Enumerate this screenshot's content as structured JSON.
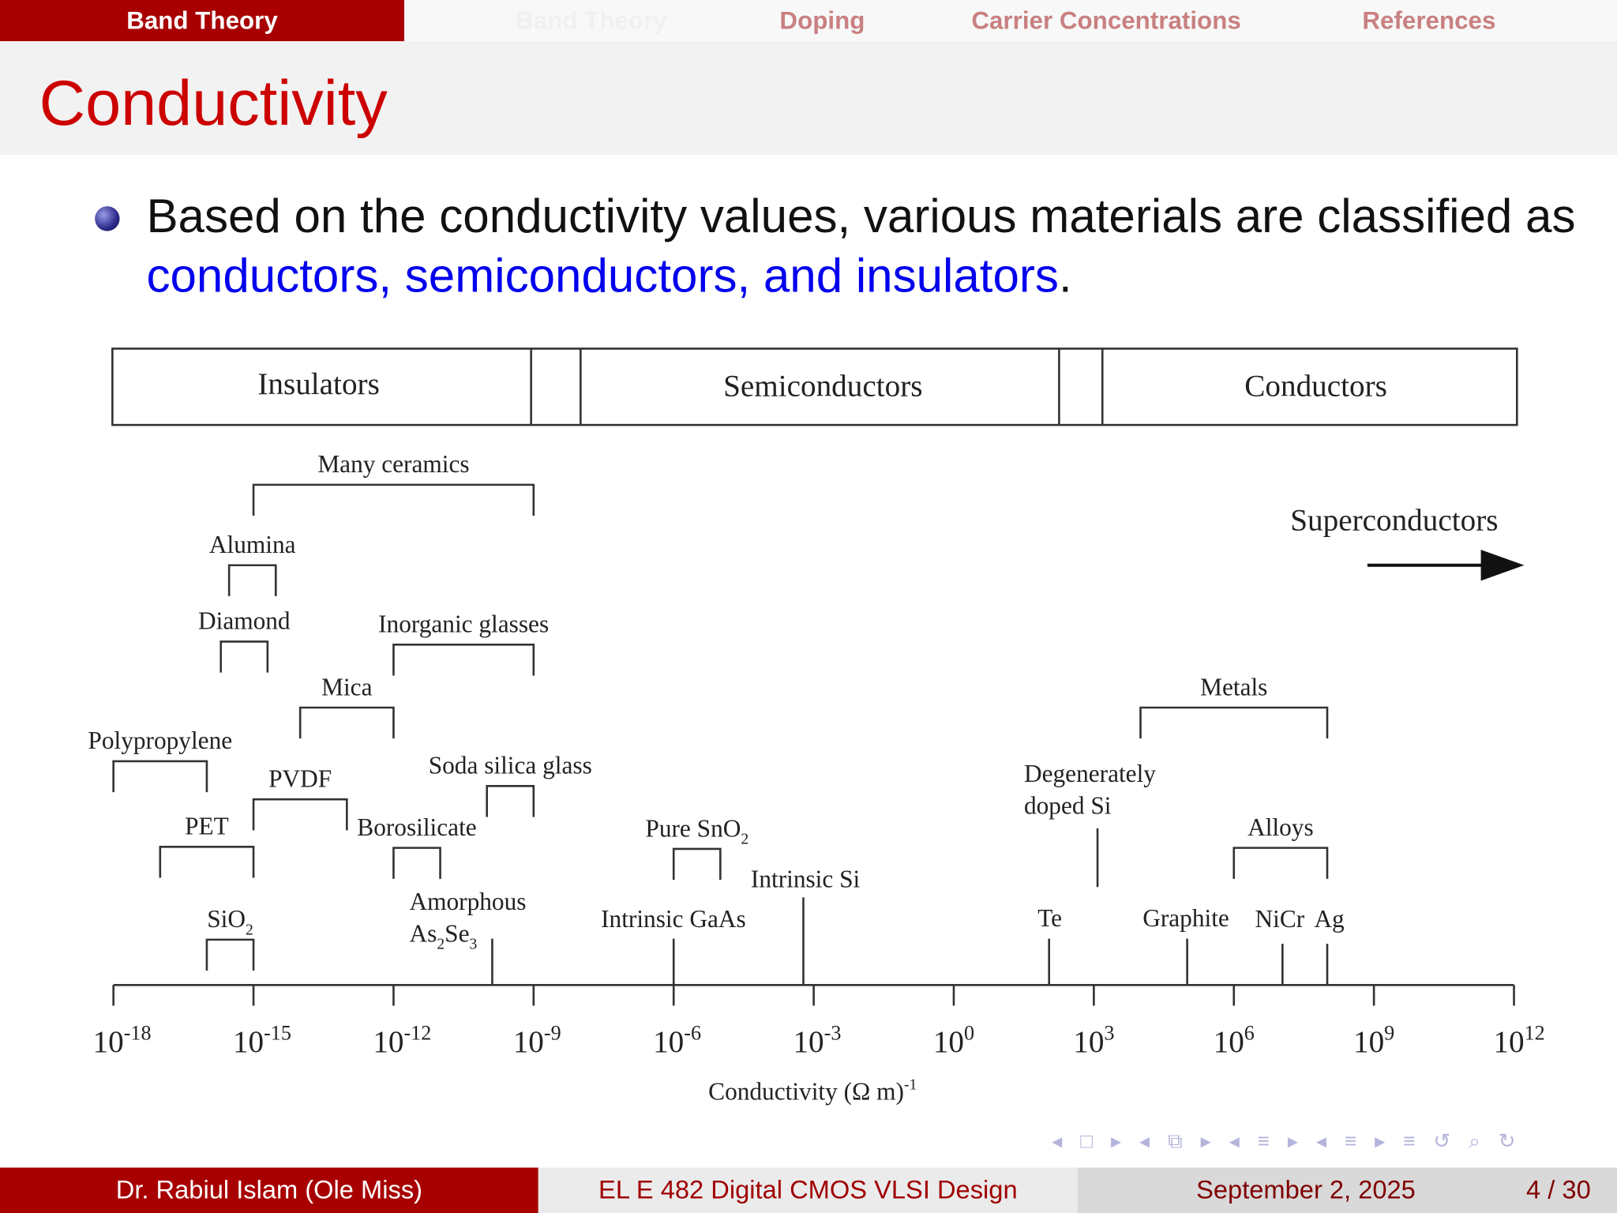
{
  "nav": {
    "active": "Band Theory",
    "items": [
      "Band Theory",
      "Doping",
      "Carrier Concentrations",
      "References"
    ]
  },
  "title": "Conductivity",
  "bullet": {
    "pre": "Based on the conductivity values, various materials are classified as ",
    "highlight": "conductors, semiconductors, and insulators",
    "post": "."
  },
  "diagram": {
    "classes": [
      "Insulators",
      "Semiconductors",
      "Conductors"
    ],
    "superconductors": "Superconductors",
    "axis_label": "Conductivity (Ω m)",
    "axis_label_exp": "-1",
    "ticks": [
      -18,
      -15,
      -12,
      -9,
      -6,
      -3,
      0,
      3,
      6,
      9,
      12
    ],
    "tick_base": "10",
    "ranges": [
      {
        "label": "Many ceramics",
        "range": [
          1e-15,
          1e-09
        ]
      },
      {
        "label": "Alumina",
        "range": [
          3e-16,
          3e-15
        ]
      },
      {
        "label": "Diamond",
        "range": [
          2e-16,
          2e-15
        ]
      },
      {
        "label": "Inorganic glasses",
        "range": [
          1e-12,
          1e-09
        ]
      },
      {
        "label": "Mica",
        "range": [
          1e-14,
          1e-12
        ]
      },
      {
        "label": "Polypropylene",
        "range": [
          1e-18,
          1e-16
        ]
      },
      {
        "label": "PVDF",
        "range": [
          1e-15,
          1e-13
        ]
      },
      {
        "label": "Soda silica glass",
        "range": [
          1e-10,
          1e-09
        ]
      },
      {
        "label": "PET",
        "range": [
          1e-17,
          1e-15
        ]
      },
      {
        "label": "Borosilicate",
        "range": [
          1e-12,
          1e-11
        ]
      },
      {
        "label": "Pure SnO",
        "sub": "2",
        "range": [
          1e-06,
          1e-05
        ]
      },
      {
        "label": "SiO",
        "sub": "2",
        "range": [
          1e-16,
          1e-15
        ]
      },
      {
        "label": "Metals",
        "range": [
          10000.0,
          100000000.0
        ]
      },
      {
        "label": "Alloys",
        "range": [
          1000000.0,
          100000000.0
        ]
      }
    ],
    "points": [
      {
        "label": [
          "Amorphous",
          "As2Se3"
        ],
        "value": 1.3e-10
      },
      {
        "label": [
          "Intrinsic GaAs"
        ],
        "value": 1e-06
      },
      {
        "label": [
          "Intrinsic Si"
        ],
        "value": 0.0006
      },
      {
        "label": [
          "Te"
        ],
        "value": 110.0
      },
      {
        "label": [
          "Degenerately",
          "doped Si"
        ],
        "value": 1200.0
      },
      {
        "label": [
          "Graphite"
        ],
        "value": 100000.0
      },
      {
        "label": [
          "NiCr"
        ],
        "value": 11000000.0
      },
      {
        "label": [
          "Ag"
        ],
        "value": 100000000.0
      }
    ]
  },
  "footer": {
    "author": "Dr. Rabiul Islam  (Ole Miss)",
    "course": "EL E 482  Digital CMOS VLSI Design",
    "date": "September 2, 2025",
    "page": "4 / 30"
  },
  "colors": {
    "accent": "#a80000",
    "title": "#cc0000",
    "highlight": "#0000ee",
    "nav_icons": "#b4b4dc"
  }
}
